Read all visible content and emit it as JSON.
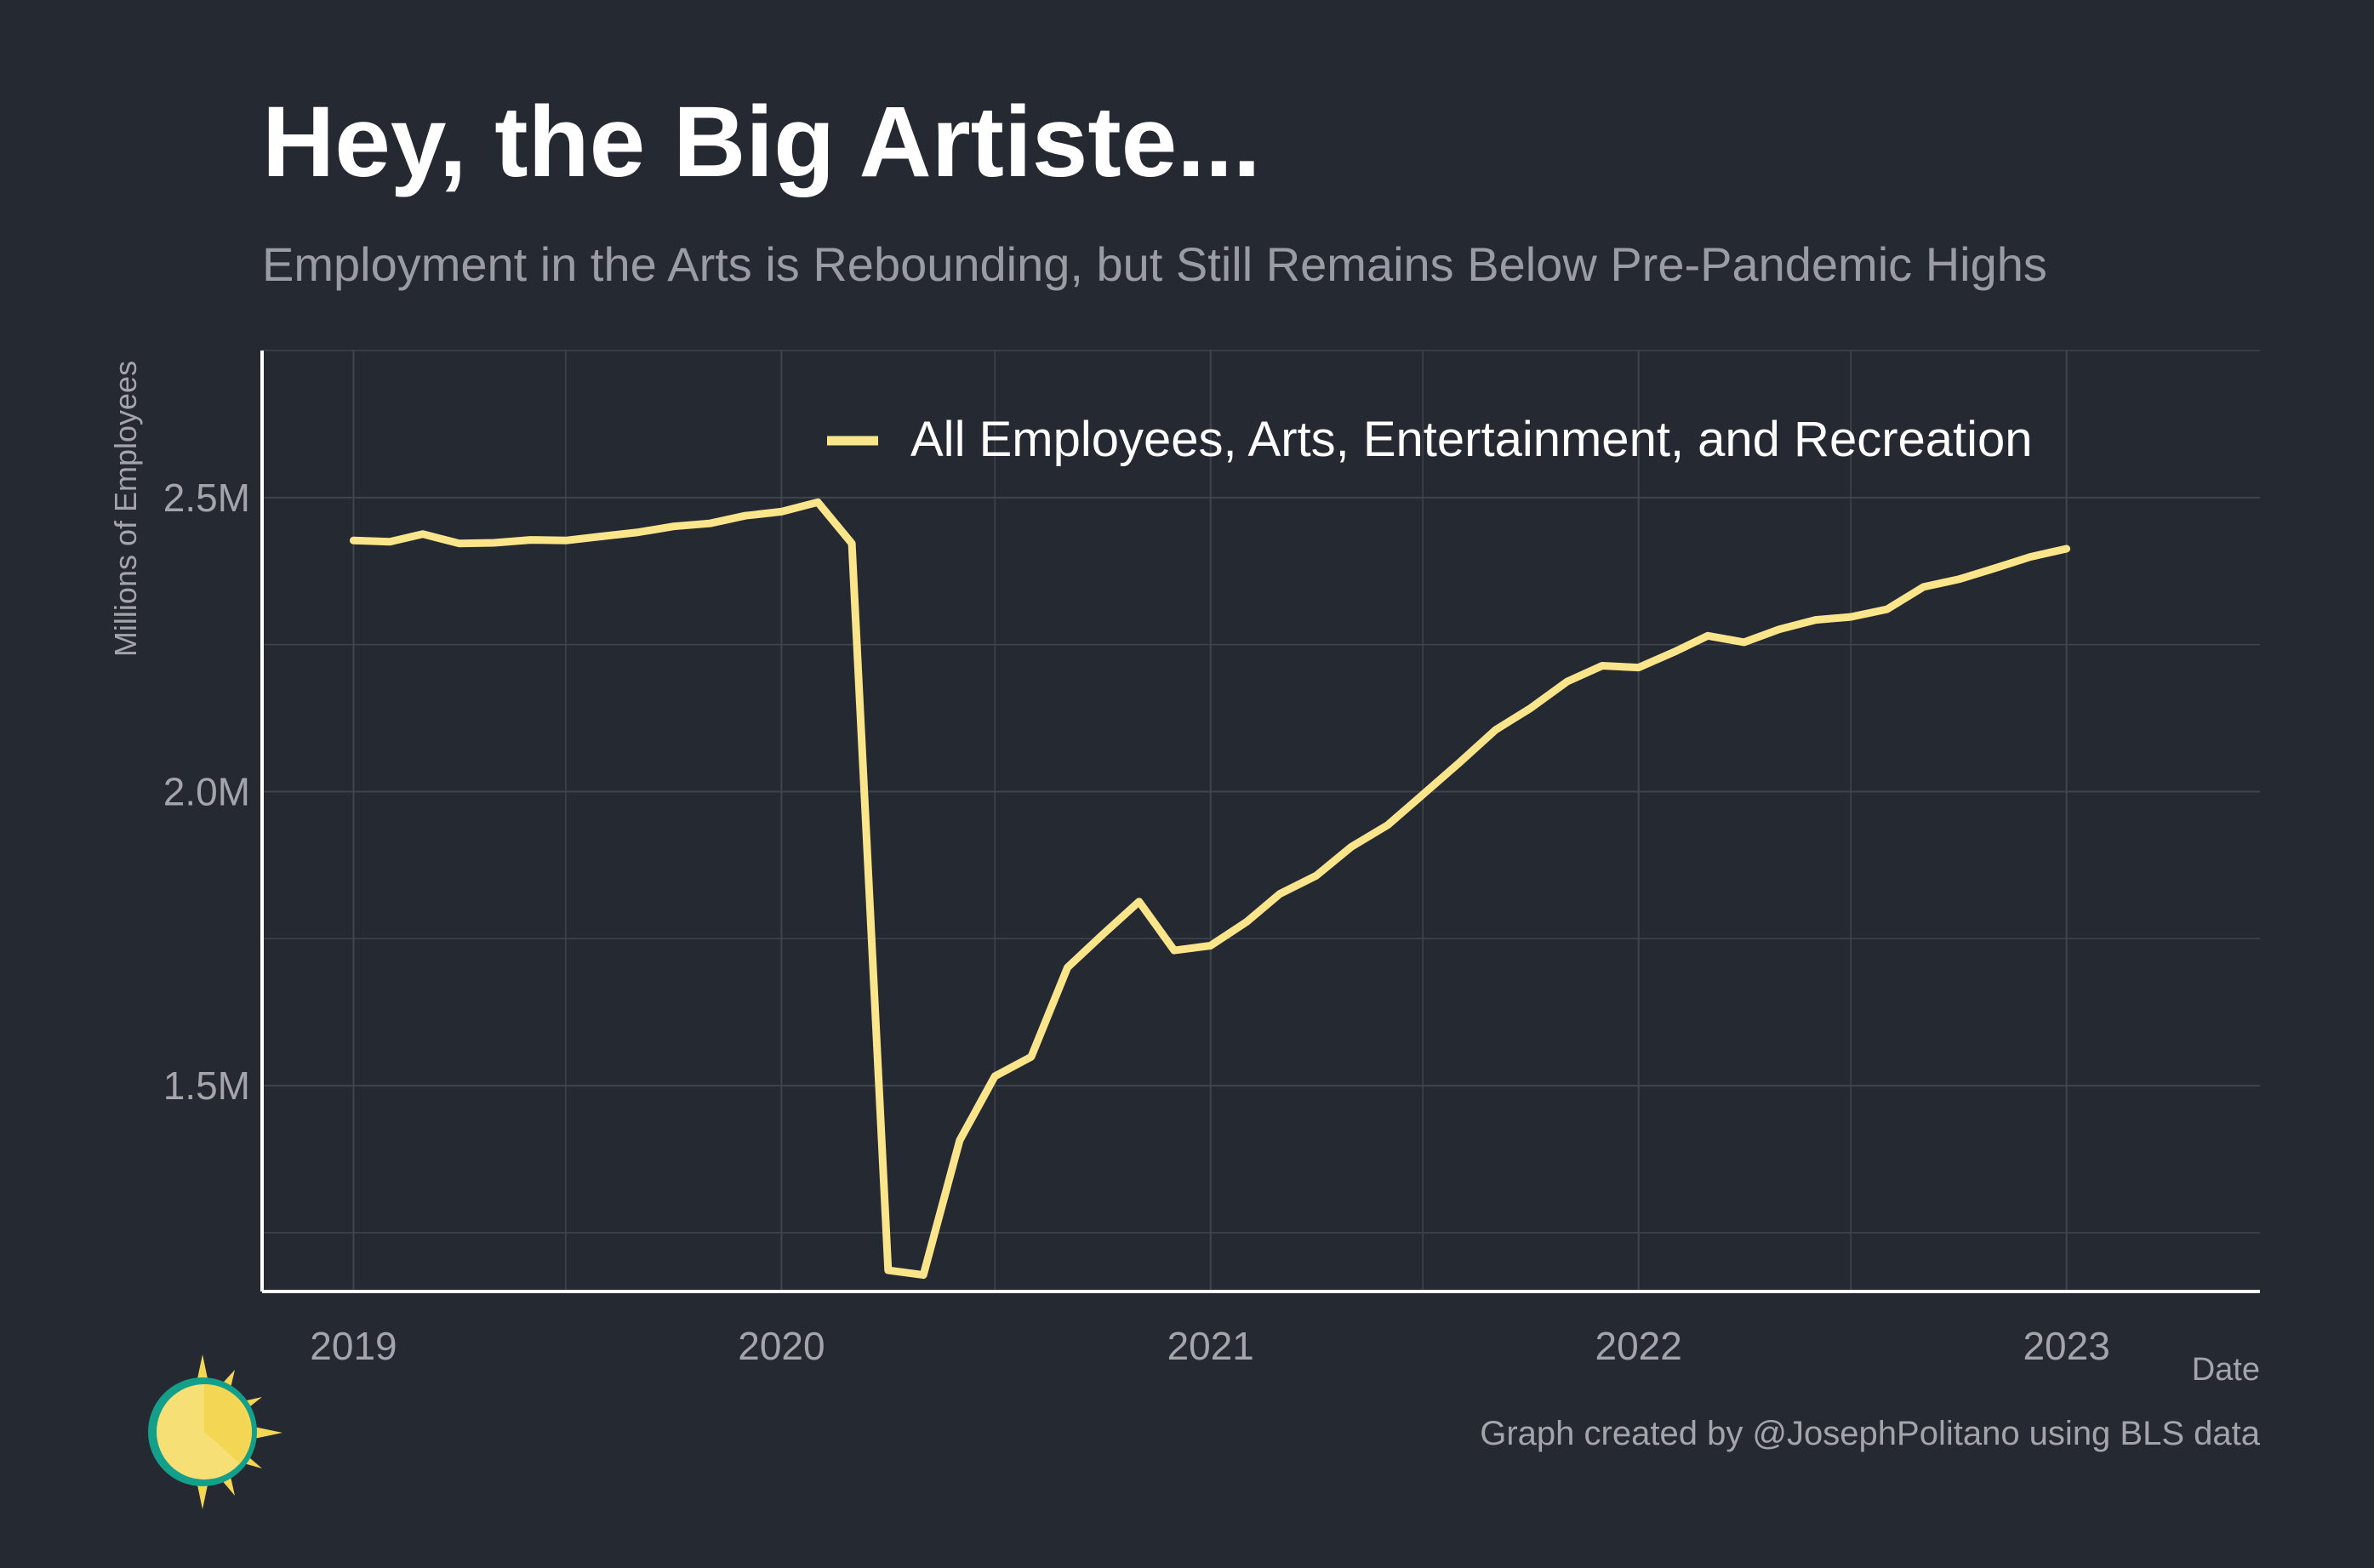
{
  "header": {
    "title": "Hey, the Big Artiste...",
    "subtitle": "Employment in the Arts is Rebounding, but Still Remains Below Pre-Pandemic Highs"
  },
  "footer": {
    "caption": "Graph created by @JosephPolitano using BLS data",
    "logo_icon": "sun-logo-icon"
  },
  "colors": {
    "background": "#252932",
    "line": "#fbe58b",
    "grid": "#40444c",
    "axis": "#ffffff",
    "tick_text": "#a3a5ab"
  },
  "chart_data": {
    "type": "line",
    "xlabel": "Date",
    "ylabel": "Millions of Employees",
    "xlim": [
      "2018-10-15",
      "2023-06-15"
    ],
    "ylim": [
      1.15,
      2.75
    ],
    "x_ticks": [
      "2019-01-01",
      "2020-01-01",
      "2021-01-01",
      "2022-01-01",
      "2023-01-01"
    ],
    "x_tick_labels": [
      "2019",
      "2020",
      "2021",
      "2022",
      "2023"
    ],
    "y_ticks": [
      1.5,
      2.0,
      2.5
    ],
    "y_tick_labels": [
      "1.5M",
      "2.0M",
      "2.5M"
    ],
    "grid": true,
    "legend_position": "top-right",
    "series": [
      {
        "name": "All Employees, Arts, Entertainment, and Recreation",
        "x": [
          "2019-01",
          "2019-02",
          "2019-03",
          "2019-04",
          "2019-05",
          "2019-06",
          "2019-07",
          "2019-08",
          "2019-09",
          "2019-10",
          "2019-11",
          "2019-12",
          "2020-01",
          "2020-02",
          "2020-03",
          "2020-04",
          "2020-05",
          "2020-06",
          "2020-07",
          "2020-08",
          "2020-09",
          "2020-10",
          "2020-11",
          "2020-12",
          "2021-01",
          "2021-02",
          "2021-03",
          "2021-04",
          "2021-05",
          "2021-06",
          "2021-07",
          "2021-08",
          "2021-09",
          "2021-10",
          "2021-11",
          "2021-12",
          "2022-01",
          "2022-02",
          "2022-03",
          "2022-04",
          "2022-05",
          "2022-06",
          "2022-07",
          "2022-08",
          "2022-09",
          "2022-10",
          "2022-11",
          "2022-12",
          "2023-01"
        ],
        "y": [
          2.427,
          2.425,
          2.438,
          2.422,
          2.423,
          2.428,
          2.427,
          2.434,
          2.441,
          2.451,
          2.456,
          2.469,
          2.476,
          2.492,
          2.422,
          1.186,
          1.178,
          1.407,
          1.516,
          1.549,
          1.701,
          1.757,
          1.813,
          1.73,
          1.738,
          1.779,
          1.826,
          1.857,
          1.906,
          1.943,
          1.995,
          2.049,
          2.105,
          2.142,
          2.187,
          2.214,
          2.211,
          2.238,
          2.265,
          2.254,
          2.276,
          2.292,
          2.297,
          2.31,
          2.348,
          2.361,
          2.38,
          2.399,
          2.413
        ]
      }
    ]
  }
}
